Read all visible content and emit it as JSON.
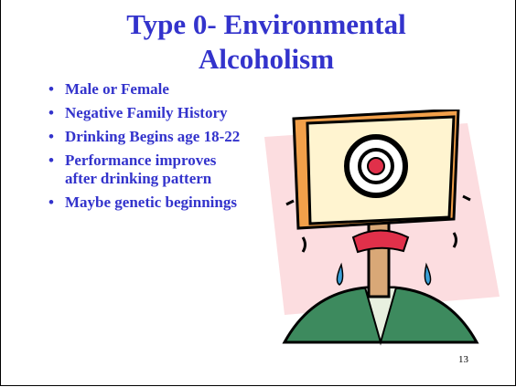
{
  "slide": {
    "title": "Type 0- Environmental Alcoholism",
    "bullets": [
      "Male or Female",
      "Negative Family History",
      "Drinking Begins age 18-22",
      "Performance improves after drinking pattern",
      "Maybe genetic beginnings"
    ],
    "page_number": "13"
  }
}
